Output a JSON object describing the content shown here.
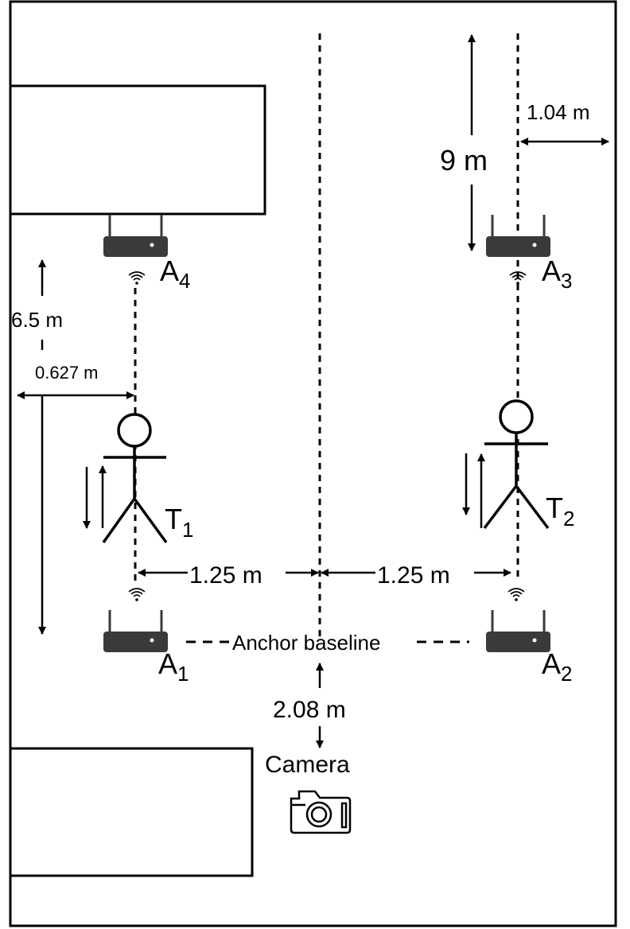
{
  "labels": {
    "anchor_baseline": "Anchor baseline",
    "camera": "Camera",
    "dist_spacing_left": "1.25 m",
    "dist_spacing_right": "1.25 m",
    "dist_camera": "2.08 m",
    "dist_wall_right": "1.04 m",
    "dist_height_right": "9 m",
    "dist_height_left": "6.5 m",
    "dist_wall_left": "0.627 m"
  },
  "anchors": [
    {
      "id": "A1",
      "letter": "A",
      "sub": "1"
    },
    {
      "id": "A2",
      "letter": "A",
      "sub": "2"
    },
    {
      "id": "A3",
      "letter": "A",
      "sub": "3"
    },
    {
      "id": "A4",
      "letter": "A",
      "sub": "4"
    }
  ],
  "targets": [
    {
      "id": "T1",
      "letter": "T",
      "sub": "1"
    },
    {
      "id": "T2",
      "letter": "T",
      "sub": "2"
    }
  ],
  "icons": {
    "router": "router-icon",
    "wifi": "wifi-signal-icon",
    "person": "person-icon",
    "camera": "camera-icon"
  },
  "colors": {
    "stroke": "#000000",
    "router_fill": "#3a3a3a",
    "background": "#ffffff"
  }
}
